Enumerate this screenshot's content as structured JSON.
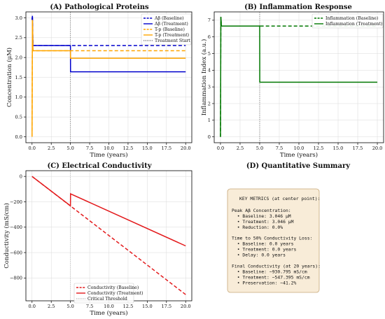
{
  "figure": {
    "panels": {
      "a_title": "(A) Pathological Proteins",
      "b_title": "(B) Inflammation Response",
      "c_title": "(C) Electrical Conductivity",
      "d_title": "(D) Quantitative Summary"
    }
  },
  "chart_data": [
    {
      "id": "A",
      "type": "line",
      "title": "(A) Pathological Proteins",
      "xlabel": "Time (years)",
      "ylabel": "Concentration (μM)",
      "xlim": [
        -0.8,
        20.8
      ],
      "ylim": [
        -0.15,
        3.15
      ],
      "xticks": [
        "0.0",
        "2.5",
        "5.0",
        "7.5",
        "10.0",
        "12.5",
        "15.0",
        "17.5",
        "20.0"
      ],
      "yticks": [
        "0.0",
        "0.5",
        "1.0",
        "1.5",
        "2.0",
        "2.5",
        "3.0"
      ],
      "grid": true,
      "legend_position": "top-right",
      "vline": {
        "x": 5,
        "label": "Treatment Start",
        "color": "#808080"
      },
      "series": [
        {
          "name": "Aβ (Baseline)",
          "color": "#0000cc",
          "dash": "dashed",
          "x": [
            0,
            0.05,
            0.12,
            20
          ],
          "y": [
            2.95,
            3.05,
            2.3,
            2.3
          ]
        },
        {
          "name": "Aβ (Treatment)",
          "color": "#0000cc",
          "dash": "solid",
          "x": [
            0,
            0.05,
            0.12,
            5,
            5.01,
            20
          ],
          "y": [
            2.95,
            3.05,
            2.3,
            2.3,
            1.64,
            1.64
          ]
        },
        {
          "name": "T-p (Baseline)",
          "color": "#ffa500",
          "dash": "dashed",
          "x": [
            0,
            0.05,
            0.12,
            20
          ],
          "y": [
            0,
            2.95,
            2.17,
            2.17
          ]
        },
        {
          "name": "T-p (Treatment)",
          "color": "#ffa500",
          "dash": "solid",
          "x": [
            0,
            0.05,
            0.12,
            5,
            5.01,
            20
          ],
          "y": [
            0,
            2.95,
            2.17,
            2.17,
            1.98,
            1.98
          ]
        }
      ]
    },
    {
      "id": "B",
      "type": "line",
      "title": "(B) Inflammation Response",
      "xlabel": "Time (years)",
      "ylabel": "Inflammation Index (a.u.)",
      "xlim": [
        -0.8,
        20.8
      ],
      "ylim": [
        -0.35,
        7.5
      ],
      "xticks": [
        "0.0",
        "2.5",
        "5.0",
        "7.5",
        "10.0",
        "12.5",
        "15.0",
        "17.5",
        "20.0"
      ],
      "yticks": [
        "0",
        "1",
        "2",
        "3",
        "4",
        "5",
        "6",
        "7"
      ],
      "grid": true,
      "legend_position": "top-right",
      "vline": {
        "x": 5,
        "label": "",
        "color": "#808080"
      },
      "series": [
        {
          "name": "Inflammation (Baseline)",
          "color": "#007700",
          "dash": "dashed",
          "x": [
            0,
            0.05,
            0.12,
            20
          ],
          "y": [
            0,
            7.2,
            6.65,
            6.65
          ]
        },
        {
          "name": "Inflammation (Treatment)",
          "color": "#007700",
          "dash": "solid",
          "x": [
            0,
            0.05,
            0.12,
            5,
            5.01,
            20
          ],
          "y": [
            0,
            7.2,
            6.65,
            6.65,
            3.28,
            3.28
          ]
        }
      ]
    },
    {
      "id": "C",
      "type": "line",
      "title": "(C) Electrical Conductivity",
      "xlabel": "Time (years)",
      "ylabel": "Conductivity (mS/cm)",
      "xlim": [
        -0.8,
        20.8
      ],
      "ylim": [
        -980,
        45
      ],
      "xticks": [
        "0.0",
        "2.5",
        "5.0",
        "7.5",
        "10.0",
        "12.5",
        "15.0",
        "17.5",
        "20.0"
      ],
      "yticks": [
        "0",
        "−200",
        "−400",
        "−600",
        "−800"
      ],
      "grid": true,
      "legend_position": "bottom-center",
      "vline": {
        "x": 5,
        "label": "Critical Threshold",
        "color": "#c0c0c0"
      },
      "series": [
        {
          "name": "Conductivity (Baseline)",
          "color": "#e31a1c",
          "dash": "dashed",
          "x": [
            0,
            20
          ],
          "y": [
            0,
            -930.795
          ]
        },
        {
          "name": "Conductivity (Treatment)",
          "color": "#e31a1c",
          "dash": "solid",
          "x": [
            0,
            5,
            5.01,
            20
          ],
          "y": [
            0,
            -232,
            -137,
            -547.395
          ]
        }
      ]
    }
  ],
  "summary": {
    "heading": "KEY METRICS (at center point):",
    "lines": [
      "",
      "Peak Aβ Concentration:",
      "  • Baseline: 3.046 μM",
      "  • Treatment: 3.046 μM",
      "  • Reduction: 0.0%",
      "",
      "Time to 50% Conductivity Loss:",
      "  • Baseline: 0.0 years",
      "  • Treatment: 0.0 years",
      "  • Delay: 0.0 years",
      "",
      "Final Conductivity (at 20 years):",
      "  • Baseline: −930.795 mS/cm",
      "  • Treatment: −547.395 mS/cm",
      "  • Preservation: −41.2%"
    ],
    "box_fill": "#f8ecd8",
    "box_stroke": "#c8a97a"
  }
}
